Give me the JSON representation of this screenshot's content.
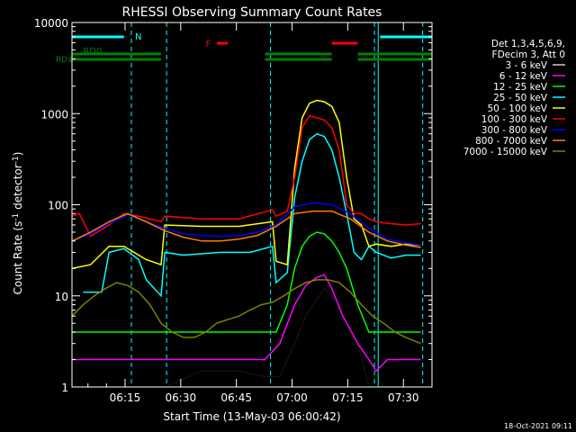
{
  "chart_data": {
    "type": "line",
    "title": "RHESSI Observing Summary Count Rates",
    "xlabel": "Start Time (13-May-03 06:00:42)",
    "ylabel_main": "Count Rate (s",
    "ylabel_sup1": "-1",
    "ylabel_mid": " detector",
    "ylabel_sup2": "-1",
    "ylabel_end": ")",
    "yscale": "log",
    "ylim": [
      1,
      10000
    ],
    "xlim_minutes": [
      0,
      97
    ],
    "xticks": [
      {
        "minutes": 14.3,
        "label": "06:15"
      },
      {
        "minutes": 29.3,
        "label": "06:30"
      },
      {
        "minutes": 44.3,
        "label": "06:45"
      },
      {
        "minutes": 59.3,
        "label": "07:00"
      },
      {
        "minutes": 74.3,
        "label": "07:15"
      },
      {
        "minutes": 89.3,
        "label": "07:30"
      }
    ],
    "yticks": [
      {
        "value": 1,
        "label": "1"
      },
      {
        "value": 10,
        "label": "10"
      },
      {
        "value": 100,
        "label": "100"
      },
      {
        "value": 1000,
        "label": "1000"
      },
      {
        "value": 10000,
        "label": "10000"
      }
    ],
    "legend_header": [
      "Det 1,3,4,5,6,9,",
      "FDecim 3, Att 0"
    ],
    "legend_position": "right",
    "series": [
      {
        "name": "3 - 6 keV",
        "color": "#000000",
        "x": [
          0,
          14,
          25,
          35,
          45,
          52,
          56,
          60,
          63,
          65,
          68,
          70,
          73,
          77,
          80,
          82,
          85,
          90,
          94
        ],
        "y": [
          1,
          1,
          1,
          1.5,
          1.5,
          1.3,
          1.3,
          3,
          6,
          8,
          12,
          10,
          6,
          3,
          1,
          1,
          1,
          1,
          1
        ]
      },
      {
        "name": "6 - 12 keV",
        "color": "#ff00ff",
        "x": [
          0,
          10,
          14,
          20,
          25,
          35,
          45,
          52,
          56,
          60,
          63,
          66,
          68,
          70,
          73,
          77,
          80,
          82,
          85,
          90,
          94
        ],
        "y": [
          2,
          2,
          2,
          2,
          2,
          2,
          2,
          2,
          3,
          8,
          13,
          16,
          17,
          12,
          6,
          3,
          2,
          1.5,
          2,
          2,
          2
        ]
      },
      {
        "name": "12 - 25 keV",
        "color": "#00ff00",
        "x": [
          0,
          2,
          10,
          20,
          25,
          35,
          45,
          52,
          55,
          58,
          60,
          62,
          64,
          66,
          68,
          70,
          72,
          74,
          77,
          80,
          82,
          86,
          90,
          94
        ],
        "y": [
          4,
          4,
          4,
          4,
          4,
          4,
          4,
          4,
          4,
          8,
          20,
          35,
          45,
          50,
          48,
          40,
          30,
          20,
          8,
          4,
          4,
          4,
          4,
          4
        ]
      },
      {
        "name": "25 - 50 keV",
        "color": "#00ffff",
        "x": [
          3,
          8,
          10,
          14,
          18,
          20,
          24,
          25,
          30,
          40,
          48,
          54,
          55,
          58,
          60,
          62,
          64,
          66,
          68,
          70,
          72,
          74,
          76,
          78,
          80,
          82,
          86,
          90,
          94
        ],
        "y": [
          11,
          11,
          30,
          33,
          25,
          15,
          10,
          30,
          28,
          30,
          30,
          35,
          14,
          18,
          120,
          300,
          520,
          600,
          560,
          400,
          200,
          80,
          30,
          25,
          35,
          30,
          26,
          28,
          28
        ]
      },
      {
        "name": "50 - 100 keV",
        "color": "#ffff00",
        "x": [
          0,
          5,
          10,
          14,
          18,
          20,
          24,
          25,
          35,
          45,
          54,
          55,
          58,
          60,
          62,
          64,
          66,
          68,
          70,
          72,
          74,
          76,
          78,
          80,
          82,
          86,
          90,
          94
        ],
        "y": [
          20,
          22,
          35,
          35,
          28,
          25,
          22,
          60,
          58,
          58,
          65,
          24,
          22,
          250,
          900,
          1300,
          1400,
          1350,
          1200,
          800,
          200,
          70,
          60,
          35,
          37,
          35,
          37,
          36
        ]
      },
      {
        "name": "100 - 300 keV",
        "color": "#ff0000",
        "x": [
          0,
          2,
          5,
          10,
          14,
          18,
          24,
          25,
          35,
          45,
          54,
          55,
          58,
          60,
          62,
          64,
          66,
          68,
          70,
          72,
          74,
          76,
          78,
          80,
          82,
          86,
          90,
          94
        ],
        "y": [
          75,
          80,
          45,
          60,
          80,
          75,
          65,
          75,
          70,
          70,
          88,
          75,
          85,
          200,
          700,
          950,
          900,
          850,
          700,
          400,
          100,
          80,
          80,
          70,
          65,
          62,
          60,
          62
        ]
      },
      {
        "name": "300 - 800 keV",
        "color": "#0000ff",
        "x": [
          0,
          5,
          10,
          15,
          20,
          25,
          30,
          35,
          40,
          45,
          50,
          55,
          60,
          65,
          70,
          75,
          80,
          85,
          90,
          94
        ],
        "y": [
          40,
          48,
          62,
          78,
          65,
          55,
          48,
          46,
          45,
          46,
          50,
          60,
          95,
          105,
          100,
          80,
          55,
          42,
          38,
          36
        ]
      },
      {
        "name": "800 - 7000 keV",
        "color": "#ff8000",
        "x": [
          0,
          5,
          10,
          15,
          20,
          25,
          30,
          35,
          40,
          45,
          50,
          55,
          60,
          65,
          70,
          75,
          80,
          85,
          90,
          94
        ],
        "y": [
          40,
          50,
          65,
          80,
          65,
          52,
          44,
          40,
          40,
          42,
          46,
          58,
          80,
          85,
          85,
          70,
          50,
          40,
          36,
          34
        ]
      },
      {
        "name": "7000 - 15000 keV",
        "color": "#808000",
        "x": [
          0,
          3,
          6,
          9,
          12,
          15,
          18,
          21,
          24,
          27,
          30,
          33,
          36,
          39,
          42,
          45,
          48,
          51,
          54,
          57,
          60,
          63,
          66,
          69,
          72,
          75,
          78,
          81,
          84,
          87,
          90,
          94
        ],
        "y": [
          6,
          8,
          10,
          12,
          14,
          13,
          11,
          8,
          5,
          4,
          3.5,
          3.5,
          4,
          5,
          5.5,
          6,
          7,
          8,
          8.5,
          10,
          12,
          14,
          15,
          15,
          14,
          11,
          8,
          6,
          5,
          4,
          3.5,
          3
        ]
      }
    ],
    "annotations": {
      "top_rows": [
        {
          "label": "N",
          "color": "#00ffff",
          "segments": [
            [
              0,
              14
            ],
            [
              83,
              97
            ]
          ]
        },
        {
          "label": "F",
          "color": "#ff0000",
          "segments": [
            [
              39,
              42
            ],
            [
              70,
              77
            ]
          ]
        },
        {
          "label": "RD0",
          "color": "#008000",
          "segments": [
            [
              0,
              24
            ],
            [
              52,
              70
            ],
            [
              77,
              97
            ]
          ]
        },
        {
          "label": "RD#",
          "color": "#008000",
          "segments": [
            [
              0,
              24
            ],
            [
              52,
              70
            ],
            [
              77,
              97
            ]
          ]
        }
      ],
      "dashed_lines_minutes": [
        16,
        25.5,
        53.5,
        81.5,
        94.5
      ],
      "solid_lines_minutes": [
        0,
        82.5
      ]
    },
    "grid": false
  },
  "footer": {
    "date_stamp": "18-Oct-2021 09:11"
  }
}
